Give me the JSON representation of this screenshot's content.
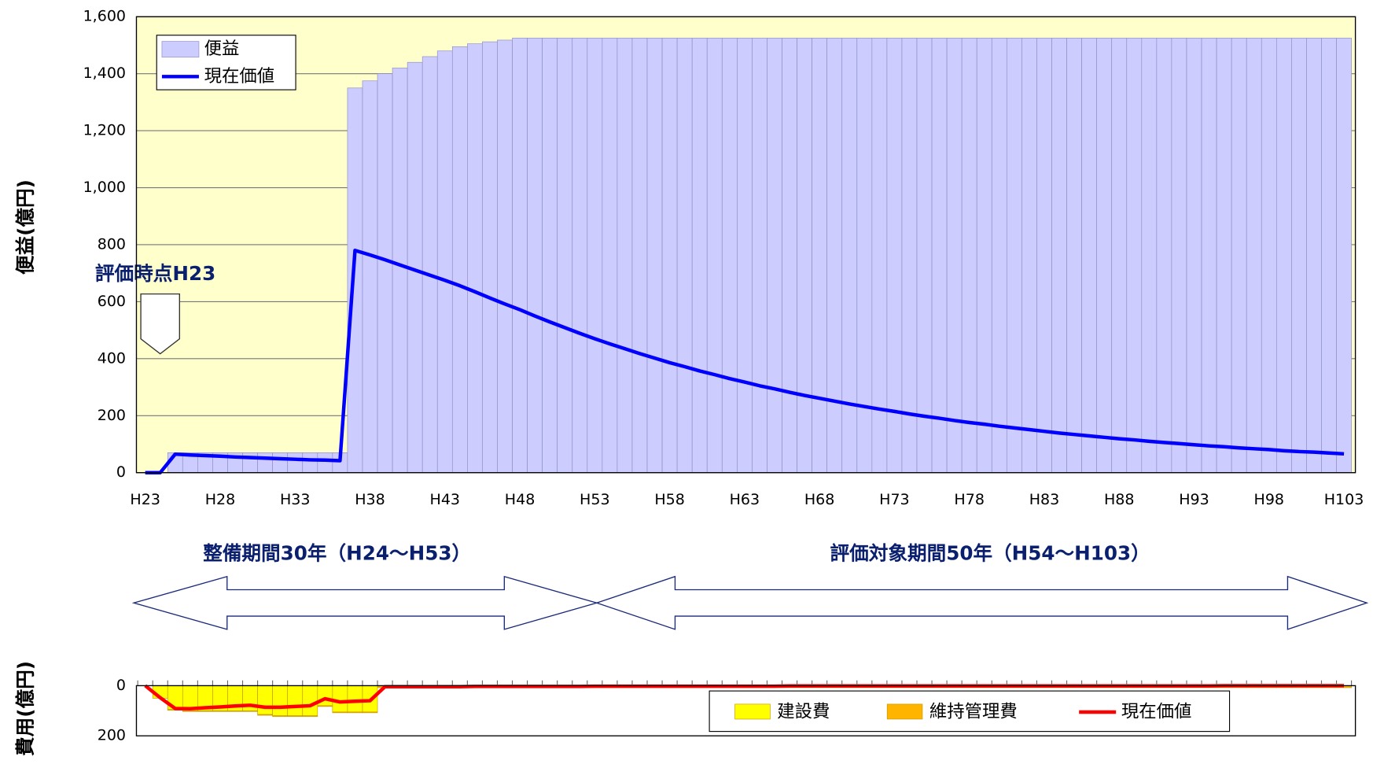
{
  "chart_data": [
    {
      "type": "bar",
      "ylabel": "便益(億円)",
      "legend": "upper left",
      "grid": true,
      "background": "#ffffcc",
      "annotations": [
        "評価時点H23",
        "整備期間30年（H24～H53）",
        "評価対象期間50年（H54～H103）"
      ],
      "categories": [
        "H23",
        null,
        null,
        null,
        null,
        "H28",
        null,
        null,
        null,
        null,
        "H33",
        null,
        null,
        null,
        null,
        "H38",
        null,
        null,
        null,
        null,
        "H43",
        null,
        null,
        null,
        null,
        "H48",
        null,
        null,
        null,
        null,
        "H53",
        null,
        null,
        null,
        null,
        "H58",
        null,
        null,
        null,
        null,
        "H63",
        null,
        null,
        null,
        null,
        "H68",
        null,
        null,
        null,
        null,
        "H73",
        null,
        null,
        null,
        null,
        "H78",
        null,
        null,
        null,
        null,
        "H83",
        null,
        null,
        null,
        null,
        "H88",
        null,
        null,
        null,
        null,
        "H93",
        null,
        null,
        null,
        null,
        "H98",
        null,
        null,
        null,
        null,
        "H103"
      ],
      "ylim": [
        0,
        1600
      ],
      "yticks": [
        0,
        200,
        400,
        600,
        800,
        {
          "value": 1000,
          "label": "1,000"
        },
        {
          "value": 1200,
          "label": "1,200"
        },
        {
          "value": 1400,
          "label": "1,400"
        },
        {
          "value": 1600,
          "label": "1,600"
        }
      ],
      "series": [
        {
          "name": "便益",
          "type": "bar",
          "color": "#ccccff",
          "values": [
            0,
            0,
            70,
            70,
            70,
            70,
            70,
            70,
            70,
            70,
            70,
            70,
            70,
            70,
            1350,
            1375,
            1400,
            1420,
            1440,
            1460,
            1480,
            1495,
            1505,
            1512,
            1518,
            1525,
            1525,
            1525,
            1525,
            1525,
            1525,
            1525,
            1525,
            1525,
            1525,
            1525,
            1525,
            1525,
            1525,
            1525,
            1525,
            1525,
            1525,
            1525,
            1525,
            1525,
            1525,
            1525,
            1525,
            1525,
            1525,
            1525,
            1525,
            1525,
            1525,
            1525,
            1525,
            1525,
            1525,
            1525,
            1525,
            1525,
            1525,
            1525,
            1525,
            1525,
            1525,
            1525,
            1525,
            1525,
            1525,
            1525,
            1525,
            1525,
            1525,
            1525,
            1525,
            1525,
            1525,
            1525,
            1525
          ]
        },
        {
          "name": "現在価値",
          "type": "line",
          "color": "#0000ff",
          "values": [
            0,
            0,
            65,
            62,
            60,
            58,
            55,
            53,
            51,
            49,
            47,
            45,
            44,
            42,
            780,
            764,
            747,
            729,
            711,
            693,
            675,
            656,
            635,
            613,
            592,
            572,
            550,
            529,
            509,
            489,
            470,
            452,
            435,
            418,
            402,
            386,
            372,
            357,
            344,
            330,
            318,
            305,
            294,
            282,
            271,
            261,
            251,
            241,
            232,
            223,
            215,
            206,
            198,
            191,
            183,
            176,
            170,
            163,
            157,
            151,
            145,
            139,
            134,
            129,
            124,
            119,
            115,
            110,
            106,
            102,
            98,
            94,
            91,
            87,
            84,
            81,
            77,
            74,
            72,
            69,
            66
          ]
        }
      ]
    },
    {
      "type": "bar",
      "stacked": true,
      "ylabel": "費用(億円)",
      "legend": "lower right",
      "y_reversed": true,
      "background": "#ffffff",
      "categories": [
        null,
        null,
        null,
        null,
        null,
        null,
        null,
        null,
        null,
        null,
        null,
        null,
        null,
        null,
        null,
        null,
        null,
        null,
        null,
        null,
        null,
        null,
        null,
        null,
        null,
        null,
        null,
        null,
        null,
        null,
        null,
        null,
        null,
        null,
        null,
        null,
        null,
        null,
        null,
        null,
        null,
        null,
        null,
        null,
        null,
        null,
        null,
        null,
        null,
        null,
        null,
        null,
        null,
        null,
        null,
        null,
        null,
        null,
        null,
        null,
        null,
        null,
        null,
        null,
        null,
        null,
        null,
        null,
        null,
        null,
        null,
        null,
        null,
        null,
        null,
        null,
        null,
        null,
        null,
        null,
        null
      ],
      "ylim": [
        0,
        200
      ],
      "yticks": [
        0,
        200
      ],
      "series": [
        {
          "name": "建設費",
          "type": "bar",
          "color": "#ffff00",
          "values": [
            0,
            50,
            95,
            100,
            100,
            100,
            100,
            100,
            115,
            120,
            120,
            120,
            80,
            105,
            105,
            105,
            0,
            0,
            0,
            0,
            0,
            0,
            0,
            0,
            0,
            0,
            0,
            0,
            0,
            0,
            0,
            0,
            0,
            0,
            0,
            0,
            0,
            0,
            0,
            0,
            0,
            0,
            0,
            0,
            0,
            0,
            0,
            0,
            0,
            0,
            0,
            0,
            0,
            0,
            0,
            0,
            0,
            0,
            0,
            0,
            0,
            0,
            0,
            0,
            0,
            0,
            0,
            0,
            0,
            0,
            0,
            0,
            0,
            0,
            0,
            0,
            0,
            0,
            0,
            0,
            0
          ]
        },
        {
          "name": "維持管理費",
          "type": "bar",
          "color": "#ffb400",
          "values": [
            0,
            0,
            3,
            3,
            3,
            3,
            3,
            3,
            3,
            3,
            3,
            3,
            3,
            3,
            3,
            3,
            8,
            8,
            8,
            8,
            8,
            8,
            8,
            8,
            8,
            8,
            8,
            8,
            8,
            8,
            8,
            8,
            8,
            8,
            8,
            8,
            8,
            8,
            8,
            8,
            8,
            8,
            8,
            8,
            8,
            8,
            8,
            8,
            8,
            8,
            8,
            8,
            8,
            8,
            8,
            8,
            8,
            8,
            8,
            8,
            8,
            8,
            8,
            8,
            8,
            8,
            8,
            8,
            8,
            8,
            8,
            8,
            8,
            8,
            8,
            8,
            8,
            8,
            8,
            8,
            8
          ]
        },
        {
          "name": "現在価値",
          "type": "line",
          "color": "#ff0000",
          "values": [
            0,
            48,
            91,
            92,
            88,
            85,
            81,
            78,
            86,
            86,
            83,
            80,
            52,
            65,
            62,
            60,
            4,
            4,
            4,
            4,
            4,
            4,
            3,
            3,
            3,
            3,
            3,
            3,
            3,
            3,
            2,
            2,
            2,
            2,
            2,
            2,
            2,
            2,
            2,
            2,
            2,
            2,
            2,
            1,
            1,
            1,
            1,
            1,
            1,
            1,
            1,
            1,
            1,
            1,
            1,
            1,
            1,
            1,
            1,
            1,
            1,
            1,
            1,
            1,
            1,
            1,
            1,
            1,
            1,
            1,
            1,
            1,
            0,
            0,
            0,
            0,
            0,
            0,
            0,
            0,
            0
          ]
        }
      ]
    }
  ]
}
